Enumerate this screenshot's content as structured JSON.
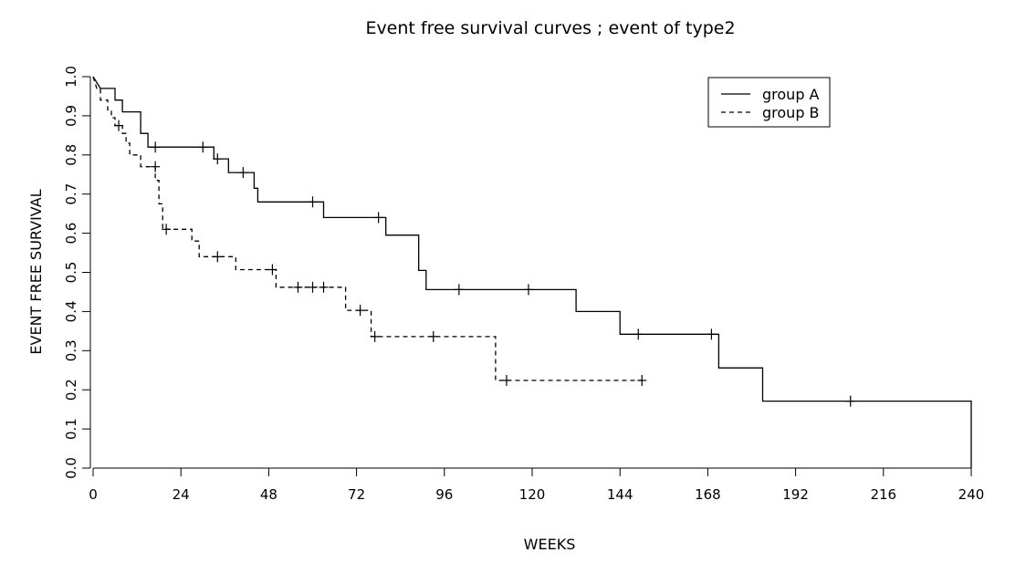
{
  "chart_data": {
    "type": "line",
    "step": true,
    "title": "Event free survival curves ; event of type2",
    "xlabel": "WEEKS",
    "ylabel": "EVENT FREE SURVIVAL",
    "xlim": [
      0,
      240
    ],
    "ylim": [
      0,
      1
    ],
    "xticks": [
      0,
      24,
      48,
      72,
      96,
      120,
      144,
      168,
      192,
      216,
      240
    ],
    "yticks": [
      "0.0",
      "0.1",
      "0.2",
      "0.3",
      "0.4",
      "0.5",
      "0.6",
      "0.7",
      "0.8",
      "0.9",
      "1.0"
    ],
    "grid": false,
    "legend": "top-right",
    "series": [
      {
        "name": "group A",
        "dash": "solid",
        "points": [
          [
            0,
            1.0
          ],
          [
            2,
            0.97
          ],
          [
            6,
            0.97
          ],
          [
            6,
            0.94
          ],
          [
            8,
            0.94
          ],
          [
            8,
            0.91
          ],
          [
            13,
            0.91
          ],
          [
            13,
            0.855
          ],
          [
            15,
            0.855
          ],
          [
            15,
            0.82
          ],
          [
            33,
            0.82
          ],
          [
            33,
            0.79
          ],
          [
            37,
            0.79
          ],
          [
            37,
            0.755
          ],
          [
            44,
            0.755
          ],
          [
            44,
            0.715
          ],
          [
            45,
            0.715
          ],
          [
            45,
            0.68
          ],
          [
            63,
            0.68
          ],
          [
            63,
            0.64
          ],
          [
            80,
            0.64
          ],
          [
            80,
            0.595
          ],
          [
            89,
            0.595
          ],
          [
            89,
            0.505
          ],
          [
            91,
            0.505
          ],
          [
            91,
            0.456
          ],
          [
            132,
            0.456
          ],
          [
            132,
            0.4
          ],
          [
            144,
            0.4
          ],
          [
            144,
            0.342
          ],
          [
            171,
            0.342
          ],
          [
            171,
            0.256
          ],
          [
            183,
            0.256
          ],
          [
            183,
            0.171
          ],
          [
            240,
            0.171
          ],
          [
            240,
            0.0
          ]
        ],
        "censored": [
          [
            17,
            0.82
          ],
          [
            30,
            0.82
          ],
          [
            34,
            0.79
          ],
          [
            41,
            0.755
          ],
          [
            60,
            0.68
          ],
          [
            78,
            0.64
          ],
          [
            100,
            0.456
          ],
          [
            119,
            0.456
          ],
          [
            149,
            0.342
          ],
          [
            169,
            0.342
          ],
          [
            207,
            0.171
          ]
        ]
      },
      {
        "name": "group B",
        "dash": "dashed",
        "points": [
          [
            0,
            1.0
          ],
          [
            1,
            0.97
          ],
          [
            2,
            0.97
          ],
          [
            2,
            0.94
          ],
          [
            4,
            0.94
          ],
          [
            4,
            0.915
          ],
          [
            5,
            0.915
          ],
          [
            5,
            0.895
          ],
          [
            6,
            0.895
          ],
          [
            6,
            0.875
          ],
          [
            8,
            0.875
          ],
          [
            8,
            0.855
          ],
          [
            9,
            0.855
          ],
          [
            9,
            0.83
          ],
          [
            10,
            0.83
          ],
          [
            10,
            0.8
          ],
          [
            13,
            0.8
          ],
          [
            13,
            0.77
          ],
          [
            17,
            0.77
          ],
          [
            17,
            0.735
          ],
          [
            18,
            0.735
          ],
          [
            18,
            0.675
          ],
          [
            19,
            0.675
          ],
          [
            19,
            0.61
          ],
          [
            27,
            0.61
          ],
          [
            27,
            0.58
          ],
          [
            29,
            0.58
          ],
          [
            29,
            0.54
          ],
          [
            39,
            0.54
          ],
          [
            39,
            0.507
          ],
          [
            50,
            0.507
          ],
          [
            50,
            0.462
          ],
          [
            69,
            0.462
          ],
          [
            69,
            0.403
          ],
          [
            76,
            0.403
          ],
          [
            76,
            0.336
          ],
          [
            110,
            0.336
          ],
          [
            110,
            0.224
          ],
          [
            150,
            0.224
          ]
        ],
        "censored": [
          [
            7,
            0.875
          ],
          [
            17,
            0.77
          ],
          [
            20,
            0.61
          ],
          [
            34,
            0.54
          ],
          [
            49,
            0.507
          ],
          [
            56,
            0.462
          ],
          [
            60,
            0.462
          ],
          [
            63,
            0.462
          ],
          [
            73,
            0.403
          ],
          [
            77,
            0.336
          ],
          [
            93,
            0.336
          ],
          [
            113,
            0.224
          ],
          [
            150,
            0.224
          ]
        ]
      }
    ]
  }
}
